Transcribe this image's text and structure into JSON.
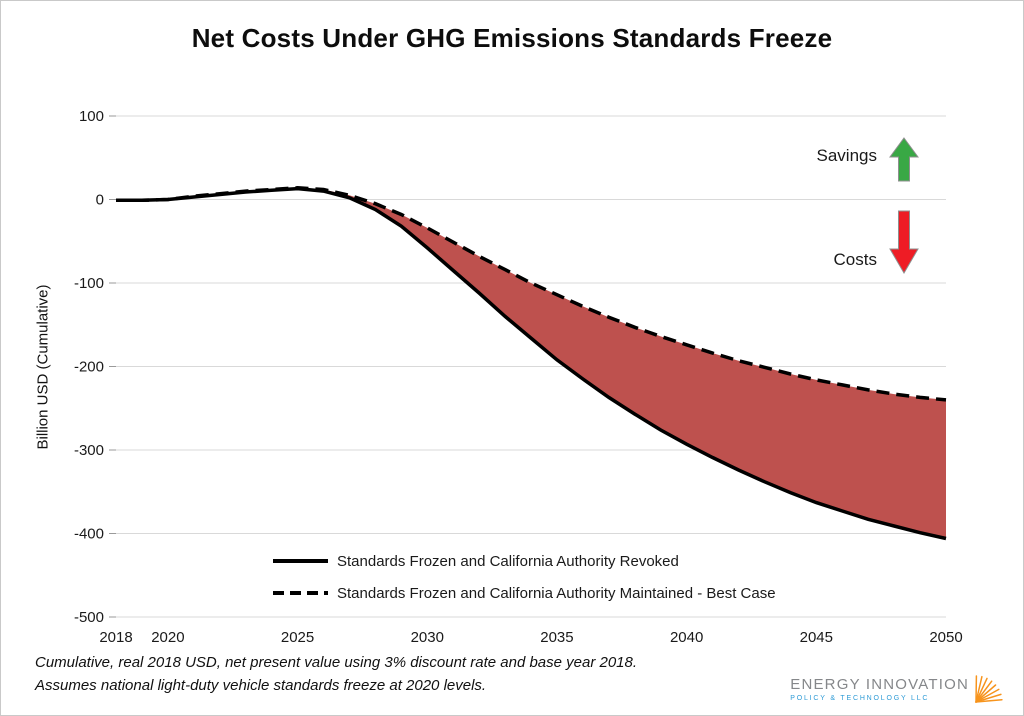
{
  "title": "Net Costs Under GHG Emissions Standards Freeze",
  "ylabel": "Billion USD (Cumulative)",
  "annotations": {
    "savings": "Savings",
    "costs": "Costs"
  },
  "footnote": {
    "line1": "Cumulative, real 2018 USD, net present value using 3% discount rate and base year 2018.",
    "line2": "Assumes national light-duty vehicle standards freeze at 2020 levels."
  },
  "logo": {
    "name": "ENERGY INNOVATION",
    "subtitle": "POLICY & TECHNOLOGY LLC"
  },
  "colors": {
    "line": "#000000",
    "grid": "#d9d9d9",
    "tick": "#9a9a9a",
    "text": "#1a1a1a",
    "fill_red": "#BE514E",
    "savings_green": "#39A845",
    "costs_red": "#EE1C25",
    "arrow_outline": "#8f8f8f",
    "logo_orange": "#F7941D"
  },
  "chart_data": {
    "type": "area",
    "title": "Net Costs Under GHG Emissions Standards Freeze",
    "xlabel": "",
    "ylabel": "Billion USD (Cumulative)",
    "ylim": [
      -500,
      100
    ],
    "ytick_step": 100,
    "x_ticks": [
      2018,
      2020,
      2025,
      2030,
      2035,
      2040,
      2045,
      2050
    ],
    "grid": true,
    "legend_position": "bottom-center-inside",
    "fill_between": true,
    "fill_color": "#BE514E",
    "x": [
      2018,
      2019,
      2020,
      2021,
      2022,
      2023,
      2024,
      2025,
      2026,
      2027,
      2028,
      2029,
      2030,
      2031,
      2032,
      2033,
      2034,
      2035,
      2036,
      2037,
      2038,
      2039,
      2040,
      2041,
      2042,
      2043,
      2044,
      2045,
      2046,
      2047,
      2048,
      2049,
      2050
    ],
    "series": [
      {
        "name": "Standards Frozen and California Authority Revoked",
        "style": "solid",
        "values": [
          -1,
          -1,
          0,
          3,
          6,
          9,
          11,
          13,
          10,
          2,
          -12,
          -32,
          -58,
          -85,
          -112,
          -140,
          -166,
          -192,
          -215,
          -237,
          -257,
          -276,
          -293,
          -309,
          -324,
          -338,
          -351,
          -363,
          -373,
          -383,
          -391,
          -399,
          -406
        ]
      },
      {
        "name": "Standards Frozen and California Authority Maintained - Best Case",
        "style": "dashed",
        "values": [
          -1,
          -1,
          0,
          4,
          7,
          10,
          12,
          14,
          12,
          5,
          -5,
          -18,
          -34,
          -51,
          -68,
          -84,
          -100,
          -114,
          -128,
          -141,
          -153,
          -164,
          -174,
          -184,
          -193,
          -201,
          -209,
          -216,
          -222,
          -228,
          -233,
          -237,
          -240
        ]
      }
    ]
  }
}
